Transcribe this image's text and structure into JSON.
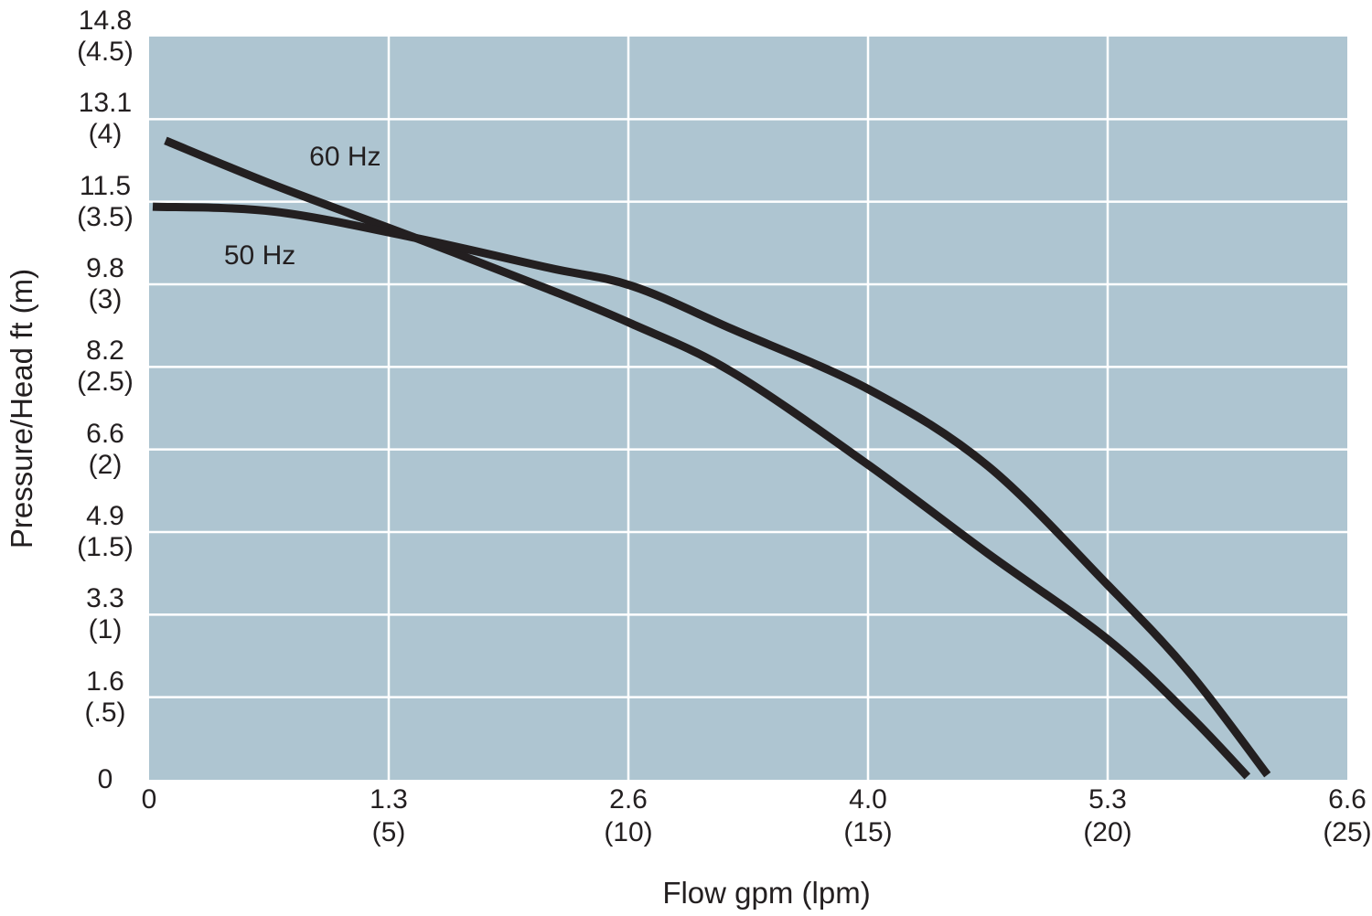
{
  "page": {
    "background": "#ffffff"
  },
  "chart_data": {
    "type": "line",
    "title": "",
    "x_axis": {
      "title": "Flow gpm (lpm)",
      "primary_unit": "gpm",
      "secondary_unit": "lpm",
      "range_primary": [
        0,
        6.6
      ],
      "range_secondary": [
        0,
        25
      ],
      "ticks": [
        {
          "primary": "0",
          "secondary": ""
        },
        {
          "primary": "1.3",
          "secondary": "(5)"
        },
        {
          "primary": "2.6",
          "secondary": "(10)"
        },
        {
          "primary": "4.0",
          "secondary": "(15)"
        },
        {
          "primary": "5.3",
          "secondary": "(20)"
        },
        {
          "primary": "6.6",
          "secondary": "(25)"
        }
      ]
    },
    "y_axis": {
      "title": "Pressure/Head ft (m)",
      "primary_unit": "ft",
      "secondary_unit": "m",
      "range_primary": [
        0,
        14.8
      ],
      "range_secondary": [
        0,
        4.5
      ],
      "ticks_top_to_bottom": [
        {
          "primary": "14.8",
          "secondary": "(4.5)"
        },
        {
          "primary": "13.1",
          "secondary": "(4)"
        },
        {
          "primary": "11.5",
          "secondary": "(3.5)"
        },
        {
          "primary": "9.8",
          "secondary": "(3)"
        },
        {
          "primary": "8.2",
          "secondary": "(2.5)"
        },
        {
          "primary": "6.6",
          "secondary": "(2)"
        },
        {
          "primary": "4.9",
          "secondary": "(1.5)"
        },
        {
          "primary": "3.3",
          "secondary": "(1)"
        },
        {
          "primary": "1.6",
          "secondary": "(.5)"
        },
        {
          "primary": "0",
          "secondary": ""
        }
      ]
    },
    "grid": {
      "show": true
    },
    "legend": "inline-curve-labels",
    "series": [
      {
        "name": "60 Hz",
        "label": "60 Hz",
        "label_anchor_gpm_m": [
          1.08,
          3.77
        ],
        "points_gpm_m": [
          [
            0.09,
            3.87
          ],
          [
            0.69,
            3.6
          ],
          [
            1.47,
            3.28
          ],
          [
            2.2,
            2.97
          ],
          [
            2.66,
            2.76
          ],
          [
            3.21,
            2.47
          ],
          [
            3.97,
            1.9
          ],
          [
            4.62,
            1.37
          ],
          [
            5.28,
            0.85
          ],
          [
            5.73,
            0.39
          ],
          [
            6.05,
            0.02
          ]
        ]
      },
      {
        "name": "50 Hz",
        "label": "50 Hz",
        "label_anchor_gpm_m": [
          0.61,
          3.17
        ],
        "points_gpm_m": [
          [
            0.02,
            3.47
          ],
          [
            0.69,
            3.44
          ],
          [
            1.47,
            3.28
          ],
          [
            2.2,
            3.1
          ],
          [
            2.66,
            2.99
          ],
          [
            3.21,
            2.73
          ],
          [
            3.97,
            2.36
          ],
          [
            4.62,
            1.9
          ],
          [
            5.28,
            1.18
          ],
          [
            5.73,
            0.65
          ],
          [
            6.16,
            0.03
          ]
        ]
      }
    ],
    "crossing_point_gpm_m": [
      1.47,
      3.28
    ],
    "colors": {
      "plot_background": "#aec5d1",
      "gridline": "#ffffff",
      "curve": "#231f20",
      "text": "#231f20"
    }
  }
}
